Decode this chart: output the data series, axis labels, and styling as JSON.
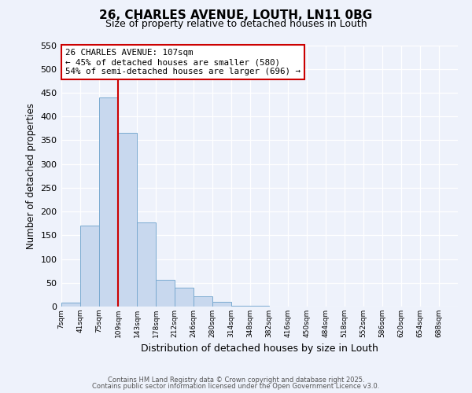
{
  "title": "26, CHARLES AVENUE, LOUTH, LN11 0BG",
  "subtitle": "Size of property relative to detached houses in Louth",
  "xlabel": "Distribution of detached houses by size in Louth",
  "ylabel": "Number of detached properties",
  "bin_labels": [
    "7sqm",
    "41sqm",
    "75sqm",
    "109sqm",
    "143sqm",
    "178sqm",
    "212sqm",
    "246sqm",
    "280sqm",
    "314sqm",
    "348sqm",
    "382sqm",
    "416sqm",
    "450sqm",
    "484sqm",
    "518sqm",
    "552sqm",
    "586sqm",
    "620sqm",
    "654sqm",
    "688sqm"
  ],
  "bar_values": [
    8,
    170,
    440,
    365,
    177,
    57,
    40,
    22,
    10,
    2,
    1,
    0,
    0,
    0,
    0,
    0,
    0,
    0,
    0,
    0,
    0
  ],
  "bar_color": "#c8d8ee",
  "bar_edge_color": "#7aaad0",
  "vline_x": 3.0,
  "vline_color": "#cc0000",
  "annotation_line1": "26 CHARLES AVENUE: 107sqm",
  "annotation_line2": "← 45% of detached houses are smaller (580)",
  "annotation_line3": "54% of semi-detached houses are larger (696) →",
  "annotation_box_color": "#ffffff",
  "annotation_box_edge": "#cc0000",
  "ylim": [
    0,
    550
  ],
  "yticks": [
    0,
    50,
    100,
    150,
    200,
    250,
    300,
    350,
    400,
    450,
    500,
    550
  ],
  "footer_line1": "Contains HM Land Registry data © Crown copyright and database right 2025.",
  "footer_line2": "Contains public sector information licensed under the Open Government Licence v3.0.",
  "bg_color": "#eef2fb",
  "plot_bg_color": "#eef2fb",
  "grid_color": "#ffffff",
  "title_fontsize": 11,
  "subtitle_fontsize": 9
}
